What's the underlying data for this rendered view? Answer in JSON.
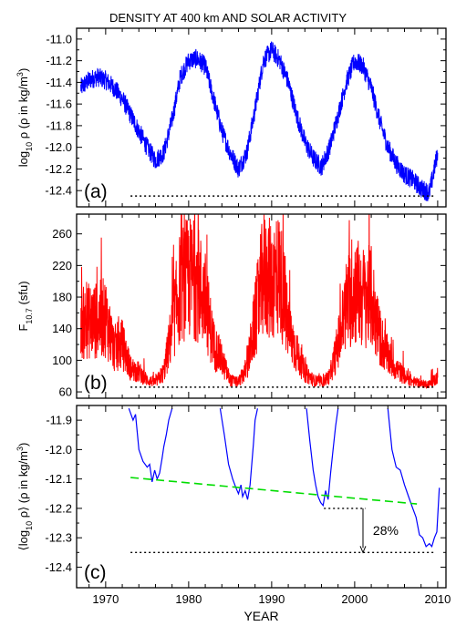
{
  "figure": {
    "title": "DENSITY AT 400 km AND SOLAR ACTIVITY",
    "xlabel": "YEAR"
  },
  "colors": {
    "density": "#0000ff",
    "f107": "#ff0000",
    "smoothed": "#0000ff",
    "trend": "#00dd00",
    "reference": "#000000"
  },
  "chart_data": [
    {
      "type": "line",
      "panel_label": "(a)",
      "ylabel_parts": [
        "log",
        "10",
        " ρ (ρ in kg/m",
        "3",
        ")"
      ],
      "xlim": [
        1966.5,
        2011
      ],
      "ylim": [
        -12.55,
        -10.9
      ],
      "yticks": [
        -12.4,
        -12.2,
        -12.0,
        -11.8,
        -11.6,
        -11.4,
        -11.2,
        -11.0
      ],
      "ytick_labels": [
        "-12.4",
        "-12.2",
        "-12.0",
        "-11.8",
        "-11.6",
        "-11.4",
        "-11.2",
        "-11.0"
      ],
      "xticks": [
        1970,
        1980,
        1990,
        2000,
        2010
      ],
      "xtick_labels": [
        "1970",
        "1980",
        "1990",
        "2000",
        "2010"
      ],
      "series": [
        {
          "x": [
            1967,
            1968,
            1969,
            1970,
            1971,
            1972,
            1973,
            1974,
            1975,
            1976,
            1977,
            1978,
            1979,
            1980,
            1981,
            1982,
            1983,
            1984,
            1985,
            1986,
            1987,
            1988,
            1989,
            1990,
            1991,
            1992,
            1993,
            1994,
            1995,
            1996,
            1997,
            1998,
            1999,
            2000,
            2001,
            2002,
            2003,
            2004,
            2005,
            2006,
            2007,
            2008,
            2009,
            2010
          ],
          "y": [
            -11.45,
            -11.38,
            -11.35,
            -11.38,
            -11.45,
            -11.55,
            -11.7,
            -11.85,
            -12.0,
            -12.12,
            -12.05,
            -11.75,
            -11.35,
            -11.2,
            -11.18,
            -11.25,
            -11.55,
            -11.85,
            -12.05,
            -12.2,
            -12.05,
            -11.65,
            -11.2,
            -11.1,
            -11.2,
            -11.4,
            -11.7,
            -11.95,
            -12.1,
            -12.18,
            -12.0,
            -11.7,
            -11.4,
            -11.2,
            -11.25,
            -11.45,
            -11.75,
            -12.0,
            -12.15,
            -12.25,
            -12.3,
            -12.38,
            -12.42,
            -12.05
          ],
          "noise": 0.09
        }
      ],
      "annotations": [
        {
          "kind": "hline",
          "y": -12.45,
          "x_start": 1973,
          "x_end": 2009.5,
          "style": "dotted"
        }
      ]
    },
    {
      "type": "line",
      "panel_label": "(b)",
      "ylabel_parts": [
        "F",
        "10.7",
        " (sfu)"
      ],
      "xlim": [
        1966.5,
        2011
      ],
      "ylim": [
        52,
        285
      ],
      "yticks": [
        60,
        100,
        140,
        180,
        220,
        260
      ],
      "ytick_labels": [
        "60",
        "100",
        "140",
        "180",
        "220",
        "260"
      ],
      "xticks": [
        1970,
        1980,
        1990,
        2000,
        2010
      ],
      "xtick_labels": [
        "1970",
        "1980",
        "1990",
        "2000",
        "2010"
      ],
      "series": [
        {
          "x": [
            1967,
            1968,
            1969,
            1970,
            1971,
            1972,
            1973,
            1974,
            1975,
            1976,
            1977,
            1978,
            1979,
            1980,
            1981,
            1982,
            1983,
            1984,
            1985,
            1986,
            1987,
            1988,
            1989,
            1990,
            1991,
            1992,
            1993,
            1994,
            1995,
            1996,
            1997,
            1998,
            1999,
            2000,
            2001,
            2002,
            2003,
            2004,
            2005,
            2006,
            2007,
            2008,
            2009,
            2010
          ],
          "y": [
            145,
            150,
            150,
            155,
            115,
            120,
            90,
            85,
            75,
            72,
            85,
            140,
            195,
            205,
            200,
            175,
            120,
            100,
            75,
            72,
            90,
            150,
            210,
            200,
            210,
            140,
            110,
            85,
            75,
            72,
            80,
            120,
            170,
            190,
            180,
            180,
            130,
            105,
            90,
            80,
            73,
            70,
            70,
            78
          ],
          "noise": 30
        }
      ],
      "annotations": [
        {
          "kind": "hline",
          "y": 66,
          "x_start": 1973,
          "x_end": 2009.5,
          "style": "dotted"
        }
      ]
    },
    {
      "type": "line",
      "panel_label": "(c)",
      "ylabel_parts": [
        "⟨log",
        "10",
        " ρ⟩ (ρ in kg/m",
        "3",
        ")"
      ],
      "xlim": [
        1966.5,
        2011
      ],
      "ylim": [
        -12.47,
        -11.85
      ],
      "yticks": [
        -12.4,
        -12.3,
        -12.2,
        -12.1,
        -12.0,
        -11.9
      ],
      "ytick_labels": [
        "-12.4",
        "-12.3",
        "-12.2",
        "-12.1",
        "-12.0",
        "-11.9"
      ],
      "xticks": [
        1970,
        1980,
        1990,
        2000,
        2010
      ],
      "xtick_labels": [
        "1970",
        "1980",
        "1990",
        "2000",
        "2010"
      ],
      "series": [
        {
          "segments": [
            {
              "x": [
                1972.8,
                1973.3,
                1973.6,
                1974.0,
                1974.5,
                1975.0,
                1975.3,
                1975.6,
                1975.9,
                1976.2,
                1976.5,
                1976.8,
                1977.0,
                1977.3,
                1977.6,
                1978.0
              ],
              "y": [
                -11.86,
                -11.9,
                -11.88,
                -12.0,
                -12.04,
                -12.06,
                -12.05,
                -12.11,
                -12.07,
                -12.1,
                -12.08,
                -12.03,
                -11.99,
                -11.95,
                -11.9,
                -11.86
              ]
            },
            {
              "x": [
                1983.8,
                1984.3,
                1984.8,
                1985.3,
                1985.7,
                1986.0,
                1986.3,
                1986.5,
                1986.8,
                1987.1,
                1987.4,
                1987.8,
                1988.0,
                1988.3
              ],
              "y": [
                -11.86,
                -11.95,
                -12.05,
                -12.1,
                -12.13,
                -12.15,
                -12.12,
                -12.16,
                -12.14,
                -12.17,
                -12.12,
                -11.98,
                -11.9,
                -11.86
              ]
            },
            {
              "x": [
                1994.2,
                1994.6,
                1995.0,
                1995.3,
                1995.6,
                1995.9,
                1996.2,
                1996.5,
                1996.8,
                1997.1,
                1997.4,
                1997.7,
                1998.0
              ],
              "y": [
                -11.86,
                -11.97,
                -12.07,
                -12.12,
                -12.16,
                -12.18,
                -12.19,
                -12.14,
                -12.17,
                -12.08,
                -12.0,
                -11.92,
                -11.86
              ]
            },
            {
              "x": [
                2004.0,
                2004.5,
                2005.0,
                2005.5,
                2006.0,
                2006.5,
                2007.0,
                2007.4,
                2007.8,
                2008.2,
                2008.6,
                2009.0,
                2009.3,
                2009.6,
                2009.9,
                2010.2
              ],
              "y": [
                -11.86,
                -12.0,
                -12.06,
                -12.07,
                -12.12,
                -12.16,
                -12.2,
                -12.23,
                -12.29,
                -12.3,
                -12.33,
                -12.32,
                -12.33,
                -12.3,
                -12.28,
                -12.13
              ]
            }
          ]
        }
      ],
      "trend": {
        "x": [
          1973,
          2007.5
        ],
        "y": [
          -12.095,
          -12.185
        ],
        "style": "dashed"
      },
      "annotations": [
        {
          "kind": "hline",
          "y": -12.35,
          "x_start": 1973,
          "x_end": 2009.5,
          "style": "dotted"
        },
        {
          "kind": "hline",
          "y": -12.2,
          "x_start": 1996.3,
          "x_end": 2001.3,
          "style": "dotted"
        },
        {
          "kind": "arrow",
          "x": 2001,
          "y_from": -12.2,
          "y_to": -12.35
        },
        {
          "kind": "text",
          "text": "28%",
          "x": 2002.2,
          "y": -12.275
        }
      ]
    }
  ]
}
